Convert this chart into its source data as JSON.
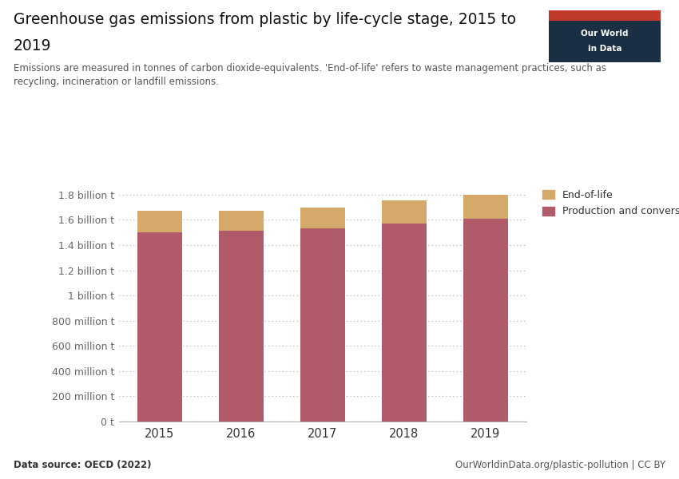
{
  "years": [
    "2015",
    "2016",
    "2017",
    "2018",
    "2019"
  ],
  "production_conversion": [
    1504000000.0,
    1512000000.0,
    1532000000.0,
    1570000000.0,
    1608000000.0
  ],
  "end_of_life": [
    165000000.0,
    163000000.0,
    168000000.0,
    185000000.0,
    192000000.0
  ],
  "color_production": "#b05a6a",
  "color_eol": "#d4a96a",
  "title_line1": "Greenhouse gas emissions from plastic by life-cycle stage, 2015 to",
  "title_line2": "2019",
  "subtitle": "Emissions are measured in tonnes of carbon dioxide-equivalents. 'End-of-life' refers to waste management practices, such as\nrecycling, incineration or landfill emissions.",
  "legend_eol": "End-of-life",
  "legend_prod": "Production and conversion",
  "ylabel_ticks": [
    0,
    200000000.0,
    400000000.0,
    600000000.0,
    800000000.0,
    1000000000.0,
    1200000000.0,
    1400000000.0,
    1600000000.0,
    1800000000.0
  ],
  "ylabel_labels": [
    "0 t",
    "200 million t",
    "400 million t",
    "600 million t",
    "800 million t",
    "1 billion t",
    "1.2 billion t",
    "1.4 billion t",
    "1.6 billion t",
    "1.8 billion t"
  ],
  "ylim": [
    0,
    1900000000.0
  ],
  "datasource": "Data source: OECD (2022)",
  "url": "OurWorldinData.org/plastic-pollution | CC BY",
  "bg_color": "#ffffff",
  "logo_bg_dark": "#1a2e44",
  "logo_bg_red": "#c0392b"
}
